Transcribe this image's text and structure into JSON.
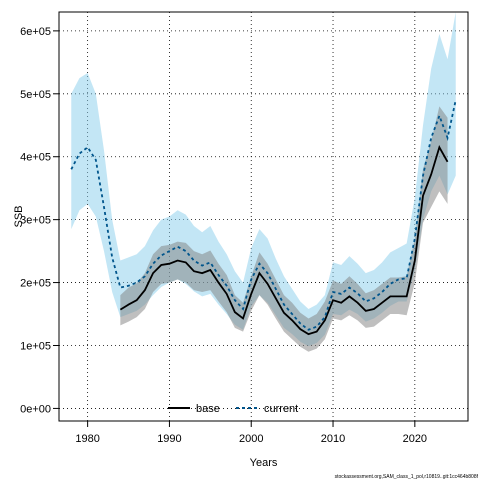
{
  "chart_data": {
    "type": "line",
    "xlabel": "Years",
    "ylabel": "SSB",
    "xlim": [
      1976.5,
      2026.5
    ],
    "ylim": [
      -20000,
      630000
    ],
    "x_ticks": [
      1980,
      1990,
      2000,
      2010,
      2020
    ],
    "y_ticks": [
      0,
      100000,
      200000,
      300000,
      400000,
      500000,
      600000
    ],
    "y_tick_labels": [
      "0e+00",
      "1e+05",
      "2e+05",
      "3e+05",
      "4e+05",
      "5e+05",
      "6e+05"
    ],
    "grid": true,
    "legend_position": "bottom-center",
    "footnote": "stockassessment.org,SAM_class_1_pol,r10819..git:1cc464b808f",
    "colors": {
      "base_line": "#000000",
      "base_band": "#7f7f7f",
      "current_line": "#00558c",
      "current_band": "#87ceeb",
      "grid": "#000000"
    },
    "series": [
      {
        "name": "base",
        "style": "solid",
        "x": [
          1984,
          1985,
          1986,
          1987,
          1988,
          1989,
          1990,
          1991,
          1992,
          1993,
          1994,
          1995,
          1996,
          1997,
          1998,
          1999,
          2000,
          2001,
          2002,
          2003,
          2004,
          2005,
          2006,
          2007,
          2008,
          2009,
          2010,
          2011,
          2012,
          2013,
          2014,
          2015,
          2016,
          2017,
          2018,
          2019,
          2020,
          2021,
          2022,
          2023,
          2024
        ],
        "y": [
          157000,
          165000,
          172000,
          188000,
          215000,
          228000,
          230000,
          235000,
          232000,
          218000,
          215000,
          220000,
          200000,
          182000,
          153000,
          143000,
          182000,
          215000,
          198000,
          175000,
          152000,
          140000,
          126000,
          118000,
          122000,
          140000,
          172000,
          168000,
          178000,
          168000,
          155000,
          158000,
          168000,
          178000,
          178000,
          178000,
          235000,
          338000,
          372000,
          415000,
          392000
        ],
        "lower": [
          132000,
          138000,
          145000,
          158000,
          185000,
          198000,
          200000,
          205000,
          200000,
          188000,
          185000,
          188000,
          170000,
          153000,
          128000,
          122000,
          155000,
          180000,
          165000,
          143000,
          122000,
          110000,
          98000,
          90000,
          95000,
          110000,
          143000,
          140000,
          148000,
          140000,
          128000,
          130000,
          140000,
          150000,
          150000,
          148000,
          200000,
          295000,
          320000,
          345000,
          325000
        ],
        "upper": [
          180000,
          192000,
          199000,
          215000,
          245000,
          258000,
          260000,
          265000,
          263000,
          250000,
          245000,
          251000,
          230000,
          212000,
          180000,
          168000,
          210000,
          248000,
          230000,
          205000,
          180000,
          168000,
          152000,
          143000,
          150000,
          170000,
          203000,
          198000,
          210000,
          198000,
          183000,
          188000,
          198000,
          208000,
          208000,
          210000,
          270000,
          380000,
          425000,
          480000,
          462000
        ]
      },
      {
        "name": "current",
        "style": "dashed",
        "x": [
          1978,
          1979,
          1980,
          1981,
          1982,
          1983,
          1984,
          1985,
          1986,
          1987,
          1988,
          1989,
          1990,
          1991,
          1992,
          1993,
          1994,
          1995,
          1996,
          1997,
          1998,
          1999,
          2000,
          2001,
          2002,
          2003,
          2004,
          2005,
          2006,
          2007,
          2008,
          2009,
          2010,
          2011,
          2012,
          2013,
          2014,
          2015,
          2016,
          2017,
          2018,
          2019,
          2020,
          2021,
          2022,
          2023,
          2024,
          2025
        ],
        "y": [
          380000,
          405000,
          415000,
          395000,
          320000,
          240000,
          192000,
          195000,
          200000,
          210000,
          230000,
          243000,
          250000,
          257000,
          250000,
          235000,
          227000,
          232000,
          212000,
          195000,
          172000,
          158000,
          205000,
          230000,
          215000,
          190000,
          165000,
          150000,
          135000,
          125000,
          130000,
          145000,
          185000,
          182000,
          192000,
          183000,
          170000,
          175000,
          185000,
          198000,
          205000,
          207000,
          270000,
          370000,
          430000,
          465000,
          430000,
          490000
        ],
        "lower": [
          285000,
          315000,
          325000,
          305000,
          250000,
          185000,
          145000,
          150000,
          155000,
          165000,
          180000,
          193000,
          200000,
          205000,
          198000,
          186000,
          178000,
          182000,
          165000,
          150000,
          133000,
          125000,
          162000,
          180000,
          168000,
          148000,
          128000,
          118000,
          106000,
          99000,
          104000,
          117000,
          150000,
          148000,
          157000,
          150000,
          138000,
          143000,
          152000,
          163000,
          170000,
          170000,
          220000,
          300000,
          345000,
          370000,
          340000,
          370000
        ],
        "upper": [
          500000,
          525000,
          533000,
          500000,
          410000,
          300000,
          235000,
          240000,
          245000,
          258000,
          283000,
          300000,
          305000,
          315000,
          308000,
          290000,
          280000,
          290000,
          265000,
          245000,
          218000,
          200000,
          255000,
          285000,
          270000,
          238000,
          210000,
          190000,
          170000,
          158000,
          165000,
          180000,
          232000,
          228000,
          242000,
          230000,
          215000,
          220000,
          232000,
          248000,
          255000,
          262000,
          335000,
          450000,
          540000,
          595000,
          555000,
          630000
        ]
      }
    ]
  }
}
